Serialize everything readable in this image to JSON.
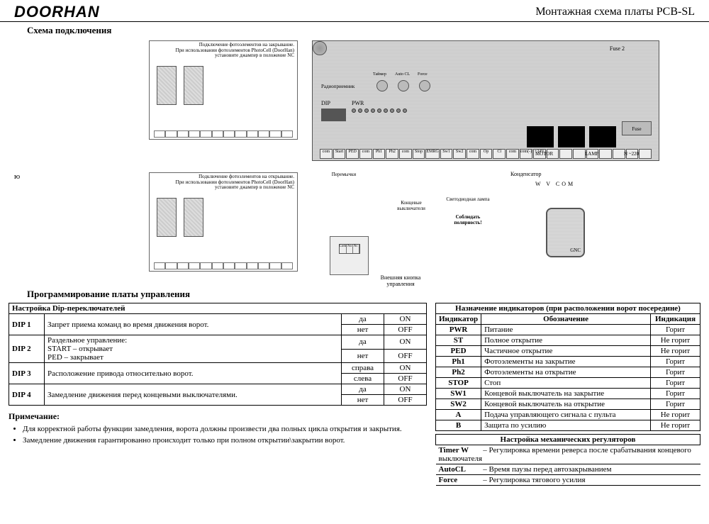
{
  "header": {
    "logo": "DOORHAN",
    "title": "Монтажная схема платы PCB-SL"
  },
  "sections": {
    "wiring": "Схема подключения",
    "programming": "Программирование платы управления"
  },
  "pcb": {
    "fuse2": "Fuse 2",
    "fuse": "Fuse",
    "dip": "DIP",
    "pwr": "PWR",
    "radio": "Радиоприемник",
    "pots": {
      "p1": "Таймер",
      "p2": "Auto CL",
      "p3": "Force"
    },
    "led_labels": [
      "ST",
      "PED",
      "Ph1",
      "Ph2",
      "STOP",
      "Sw1",
      "Sw2",
      "A",
      "B"
    ],
    "term_groups": {
      "motor": "MOTOR",
      "lamp": "LAMP",
      "n220": "N ~220"
    },
    "bottom_terms": [
      "com",
      "Start",
      "PED",
      "com",
      "Ph1",
      "Ph2",
      "com",
      "Stop",
      "EMRG",
      "Sw1",
      "Sw2",
      "com",
      "Op",
      "Cl",
      "com",
      "com(-)",
      "+24V",
      "",
      "",
      "",
      "",
      "",
      "",
      "",
      ""
    ]
  },
  "photocell": {
    "cap1": "Подключение фотоэлементов на закрывание.\nПри использовании фотоэлементов PhotoCell (DoorHan)\nустановите джампер в положение NC",
    "cap2": "Подключение фотоэлементов на открывание.\nПри использовании фотоэлементов PhotoCell (DoorHan)\nустановите джампер в положение NC"
  },
  "wire_notes": {
    "jumpers": "Перемычки",
    "endswitch": "Концевые выключатели",
    "ledlamp": "Светодиодная лампа",
    "polarity": "Соблюдать полярность!",
    "capacitor": "Конденсатор",
    "wvcom": "W V COM",
    "extbtn": "Внешняя кнопка управления",
    "gnc": "GNC"
  },
  "misc": {
    "yo": "ю"
  },
  "dip_table": {
    "title": "Настройка Dip-переключателей",
    "rows": [
      {
        "dip": "DIP 1",
        "desc": "Запрет приема команд во время движения ворот.",
        "states": [
          [
            "да",
            "ON"
          ],
          [
            "нет",
            "OFF"
          ]
        ]
      },
      {
        "dip": "DIP 2",
        "desc": "Раздельное управление:\nSTART – открывает\nPED – закрывает",
        "states": [
          [
            "да",
            "ON"
          ],
          [
            "нет",
            "OFF"
          ]
        ]
      },
      {
        "dip": "DIP 3",
        "desc": "Расположение привода относительно ворот.",
        "states": [
          [
            "справа",
            "ON"
          ],
          [
            "слева",
            "OFF"
          ]
        ]
      },
      {
        "dip": "DIP 4",
        "desc": "Замедление движения перед концевыми выключателями.",
        "states": [
          [
            "да",
            "ON"
          ],
          [
            "нет",
            "OFF"
          ]
        ]
      }
    ]
  },
  "notes": {
    "title": "Примечание:",
    "items": [
      "Для корректной работы функции замедления, ворота должны произвести два полных цикла открытия и закрытия.",
      "Замедление движения гарантированно происходит только при полном открытии\\закрытии ворот."
    ]
  },
  "indicators": {
    "title": "Назначение индикаторов (при расположении ворот посередине)",
    "cols": [
      "Индикатор",
      "Обозначение",
      "Индикация"
    ],
    "rows": [
      [
        "PWR",
        "Питание",
        "Горит"
      ],
      [
        "ST",
        "Полное открытие",
        "Не горит"
      ],
      [
        "PED",
        "Частичное открытие",
        "Не горит"
      ],
      [
        "Ph1",
        "Фотоэлементы на закрытие",
        "Горит"
      ],
      [
        "Ph2",
        "Фотоэлементы на открытие",
        "Горит"
      ],
      [
        "STOP",
        "Стоп",
        "Горит"
      ],
      [
        "SW1",
        "Концевой выключатель на закрытие",
        "Горит"
      ],
      [
        "SW2",
        "Концевой выключатель на открытие",
        "Горит"
      ],
      [
        "A",
        "Подача управляющего сигнала с пульта",
        "Не горит"
      ],
      [
        "B",
        "Защита по усилию",
        "Не горит"
      ]
    ]
  },
  "mech": {
    "title": "Настройка механических регуляторов",
    "rows": [
      {
        "label": "Timer W",
        "desc": "– Регулировка времени реверса после срабатывания концевого выключателя"
      },
      {
        "label": "AutoCL",
        "desc": "– Время паузы перед автозакрыванием"
      },
      {
        "label": "Force",
        "desc": "– Регулировка тягового усилия"
      }
    ]
  },
  "colors": {
    "bg": "#ffffff",
    "text": "#000000",
    "board": "#c8c8c8",
    "border": "#000000"
  }
}
